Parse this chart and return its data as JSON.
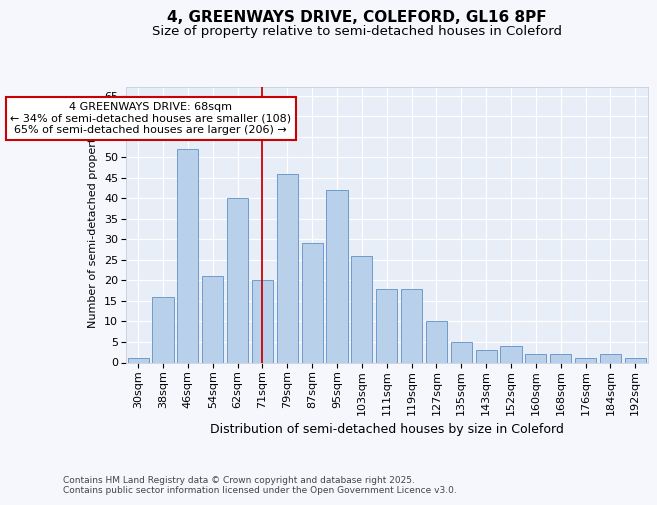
{
  "title1": "4, GREENWAYS DRIVE, COLEFORD, GL16 8PF",
  "title2": "Size of property relative to semi-detached houses in Coleford",
  "xlabel": "Distribution of semi-detached houses by size in Coleford",
  "ylabel": "Number of semi-detached properties",
  "categories": [
    "30sqm",
    "38sqm",
    "46sqm",
    "54sqm",
    "62sqm",
    "71sqm",
    "79sqm",
    "87sqm",
    "95sqm",
    "103sqm",
    "111sqm",
    "119sqm",
    "127sqm",
    "135sqm",
    "143sqm",
    "152sqm",
    "160sqm",
    "168sqm",
    "176sqm",
    "184sqm",
    "192sqm"
  ],
  "values": [
    1,
    16,
    52,
    21,
    40,
    20,
    46,
    29,
    42,
    26,
    18,
    18,
    10,
    5,
    3,
    4,
    2,
    2,
    1,
    2,
    1
  ],
  "bar_color": "#b8d0ea",
  "bar_edge_color": "#6090c8",
  "highlight_index": 5,
  "red_line_color": "#cc0000",
  "annotation_text": "4 GREENWAYS DRIVE: 68sqm\n← 34% of semi-detached houses are smaller (108)\n65% of semi-detached houses are larger (206) →",
  "annotation_box_color": "#cc0000",
  "background_color": "#f5f7fc",
  "plot_bg_color": "#e8eef8",
  "footer_text": "Contains HM Land Registry data © Crown copyright and database right 2025.\nContains public sector information licensed under the Open Government Licence v3.0.",
  "ylim": [
    0,
    67
  ],
  "yticks": [
    0,
    5,
    10,
    15,
    20,
    25,
    30,
    35,
    40,
    45,
    50,
    55,
    60,
    65
  ],
  "title1_fontsize": 11,
  "title2_fontsize": 9.5,
  "xlabel_fontsize": 9,
  "ylabel_fontsize": 8,
  "tick_fontsize": 8,
  "annotation_fontsize": 8,
  "footer_fontsize": 6.5
}
